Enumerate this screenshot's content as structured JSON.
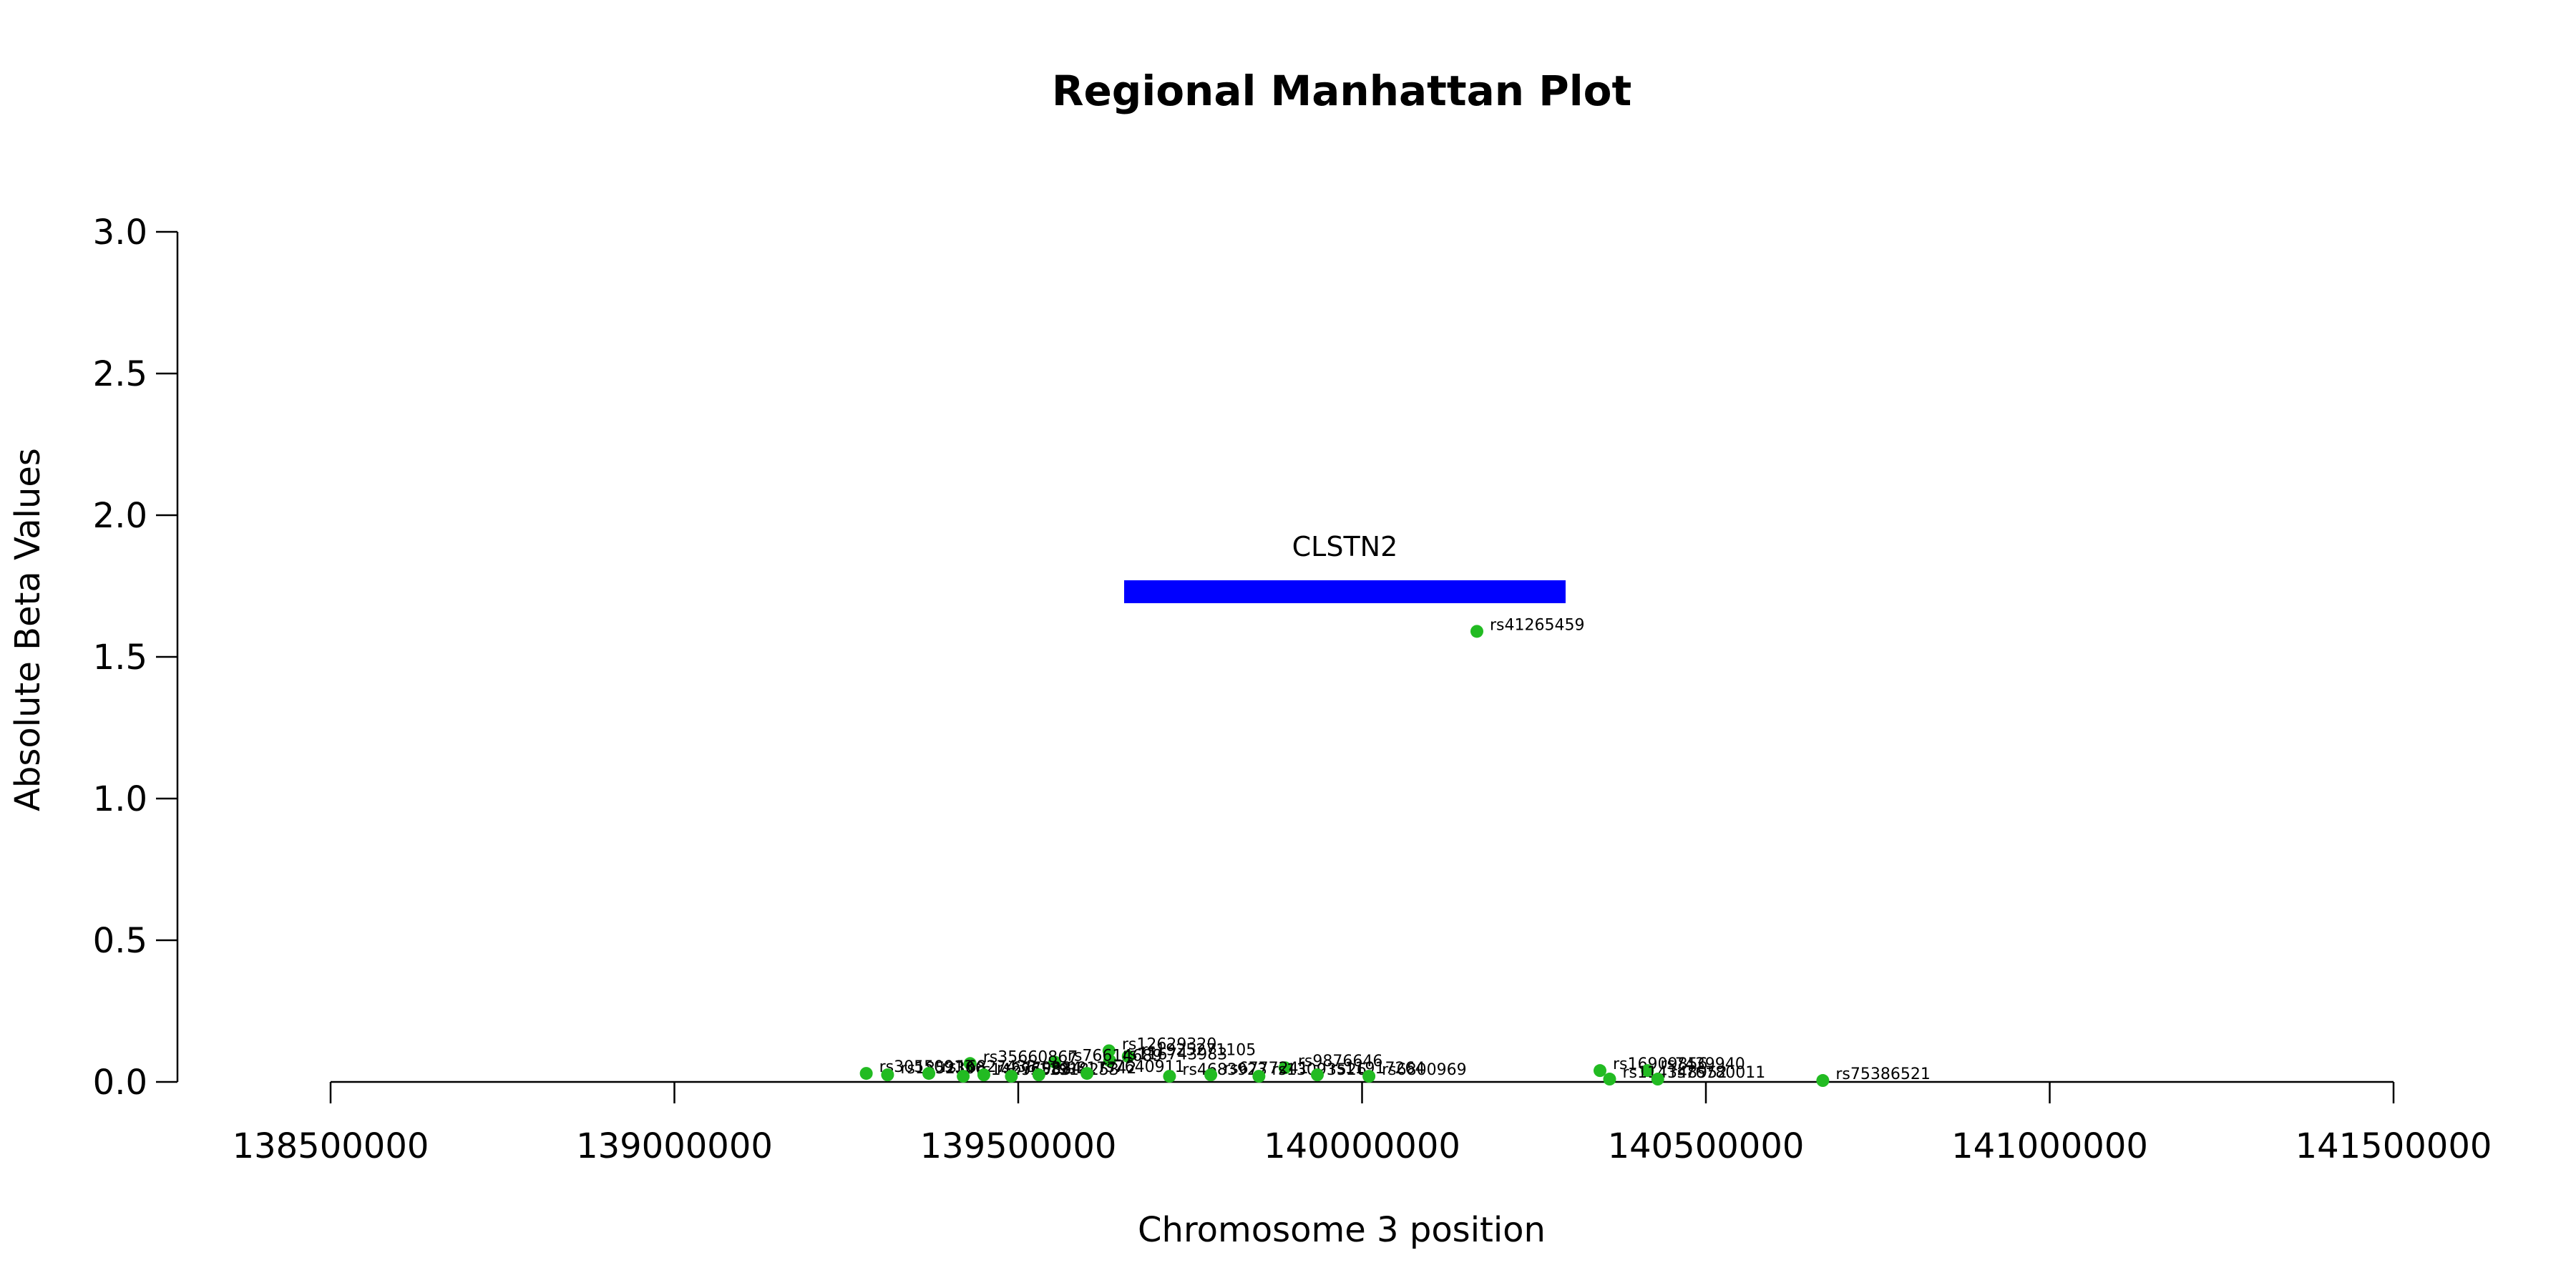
{
  "chart_data": {
    "type": "scatter",
    "title": "Regional Manhattan Plot",
    "xlabel": "Chromosome 3 position",
    "ylabel": "Absolute Beta Values",
    "xlim": [
      138500000,
      141500000
    ],
    "ylim": [
      0,
      3
    ],
    "xticks": [
      138500000,
      139000000,
      139500000,
      140000000,
      140500000,
      141000000,
      141500000
    ],
    "yticks": [
      "0.0",
      "0.5",
      "1.0",
      "1.5",
      "2.0",
      "2.5",
      "3.0"
    ],
    "grid": false,
    "point_color": "#22bb22",
    "gene": {
      "name": "CLSTN2",
      "start": 139654000,
      "end": 140296000,
      "y": 1.73,
      "color": "#0000ff"
    },
    "points": [
      {
        "x": 140167000,
        "y": 1.59,
        "label": "rs41265459"
      },
      {
        "x": 139632000,
        "y": 0.11,
        "label": "rs12629320"
      },
      {
        "x": 139660000,
        "y": 0.09,
        "label": "rs1925271105"
      },
      {
        "x": 139633000,
        "y": 0.075,
        "label": "rs116743983"
      },
      {
        "x": 139553000,
        "y": 0.07,
        "label": "rs76614689"
      },
      {
        "x": 139430000,
        "y": 0.065,
        "label": "rs35660867"
      },
      {
        "x": 139888000,
        "y": 0.05,
        "label": "rs9876646"
      },
      {
        "x": 139279000,
        "y": 0.03,
        "label": "rs30550913"
      },
      {
        "x": 139310000,
        "y": 0.025,
        "label": "rs1852300"
      },
      {
        "x": 139370000,
        "y": 0.03,
        "label": "rs16827433"
      },
      {
        "x": 139420000,
        "y": 0.02,
        "label": "rs14296583"
      },
      {
        "x": 139450000,
        "y": 0.025,
        "label": "rs6779384"
      },
      {
        "x": 139490000,
        "y": 0.02,
        "label": "rs11918253"
      },
      {
        "x": 139530000,
        "y": 0.025,
        "label": "rs9817742"
      },
      {
        "x": 139600000,
        "y": 0.03,
        "label": "rs7640911"
      },
      {
        "x": 139720000,
        "y": 0.02,
        "label": "rs4683923"
      },
      {
        "x": 139780000,
        "y": 0.025,
        "label": "rs6777241"
      },
      {
        "x": 139850000,
        "y": 0.02,
        "label": "rs13093526"
      },
      {
        "x": 139935000,
        "y": 0.025,
        "label": "rs11917264"
      },
      {
        "x": 140010000,
        "y": 0.02,
        "label": "rs6800969"
      },
      {
        "x": 140346000,
        "y": 0.04,
        "label": "rs16909856"
      },
      {
        "x": 140415000,
        "y": 0.04,
        "label": "rs7439940"
      },
      {
        "x": 140360000,
        "y": 0.01,
        "label": "rs114348952"
      },
      {
        "x": 140430000,
        "y": 0.01,
        "label": "rs76780011"
      },
      {
        "x": 140670000,
        "y": 0.005,
        "label": "rs75386521"
      }
    ]
  }
}
